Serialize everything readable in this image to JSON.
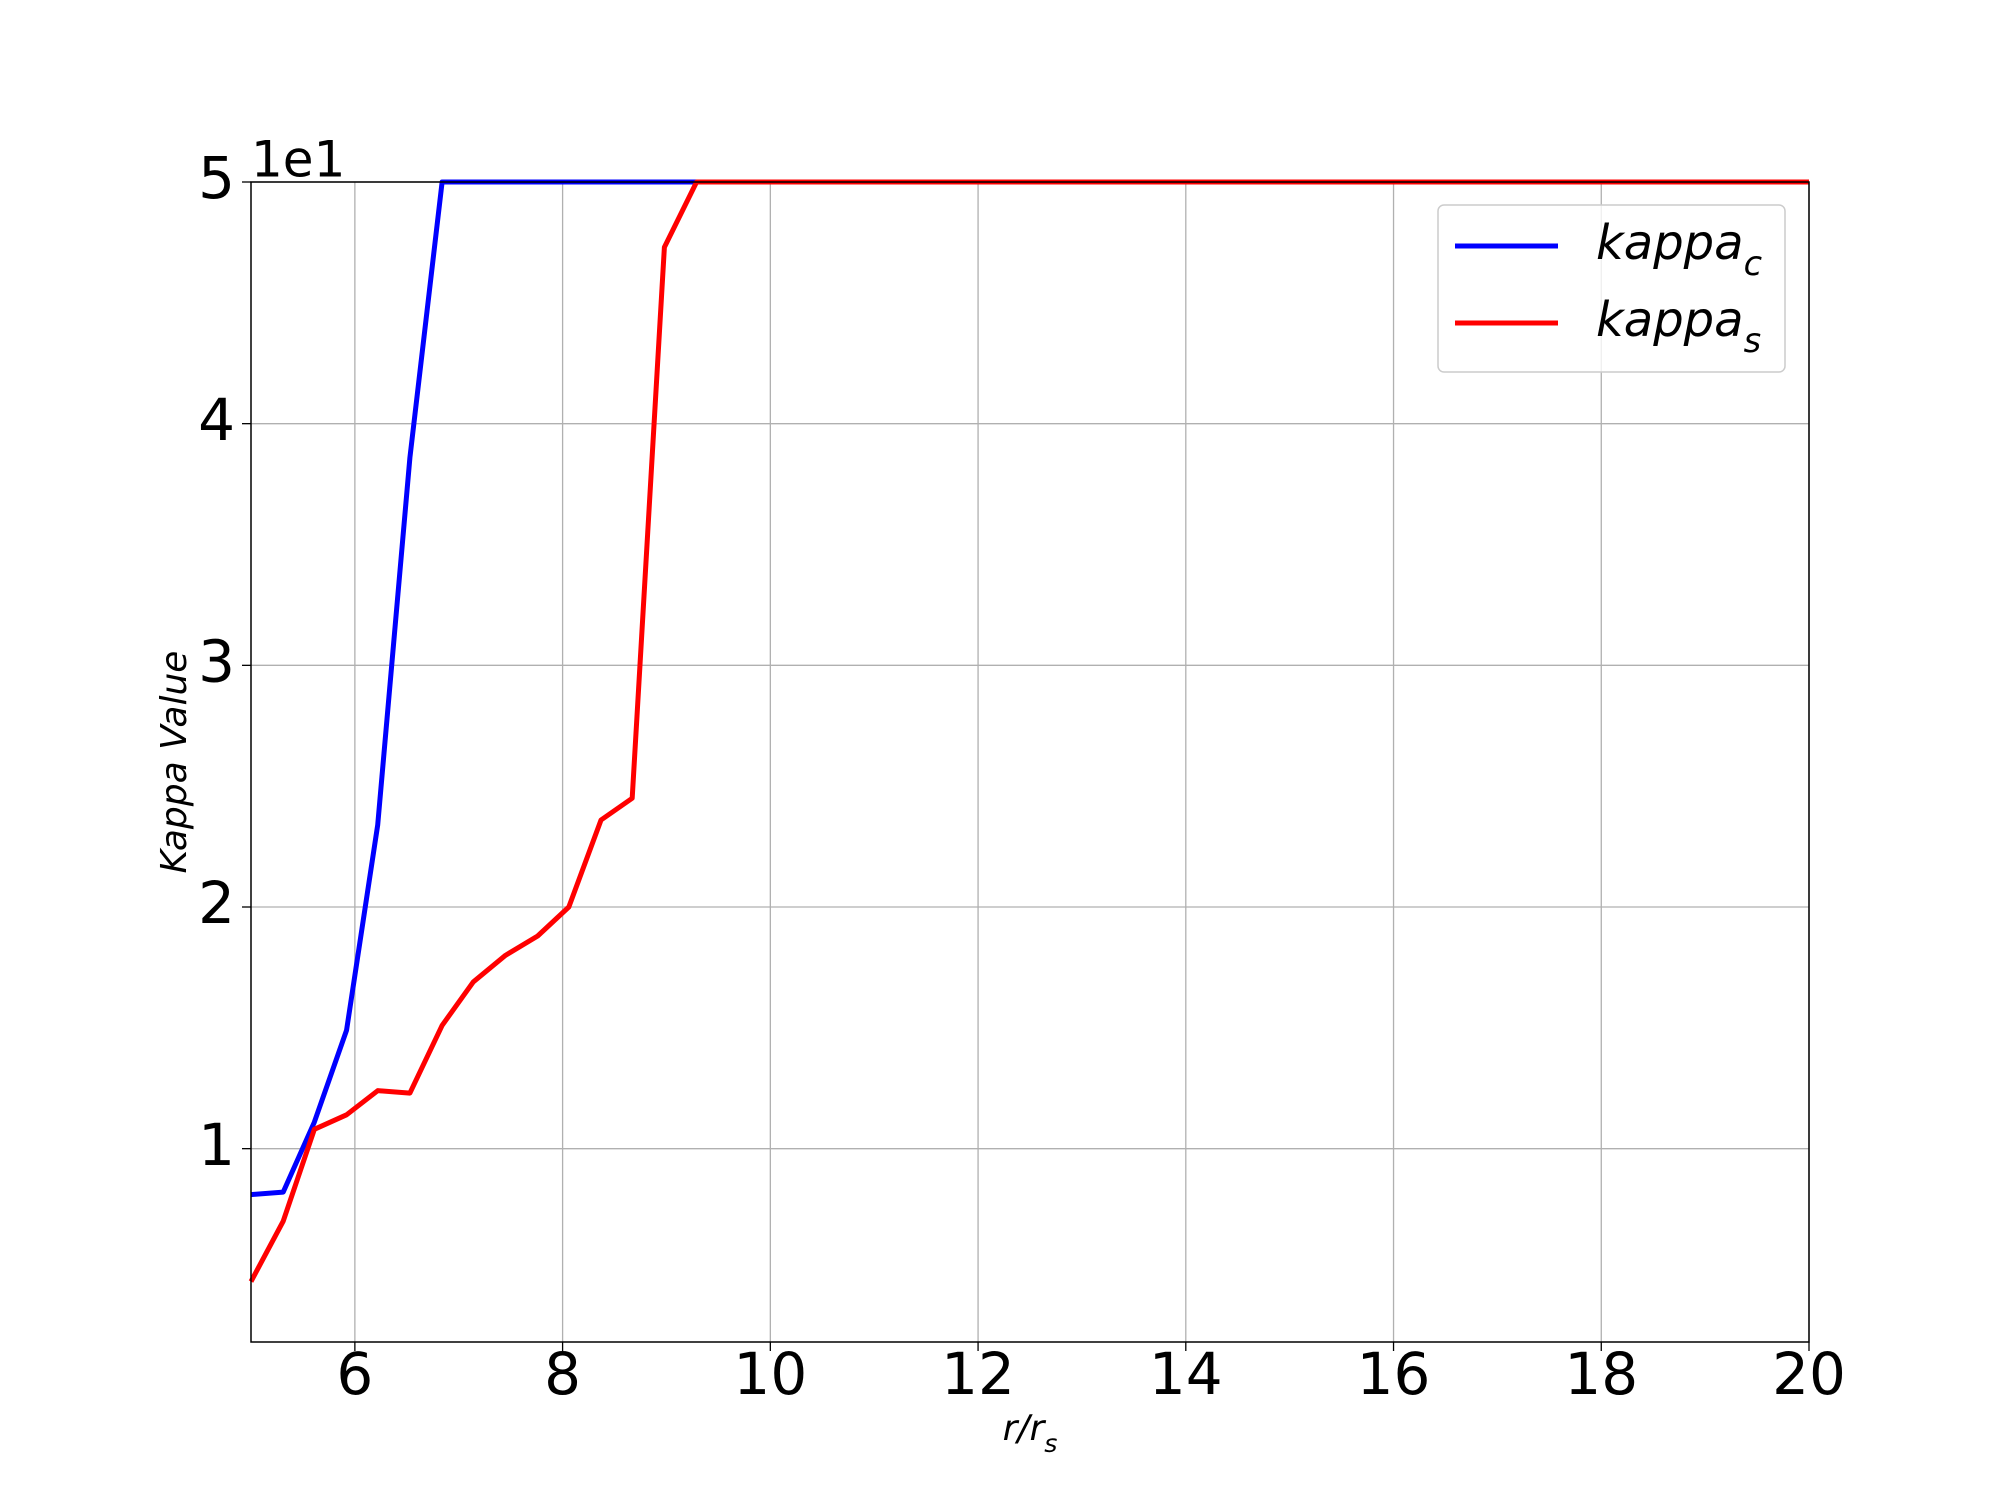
{
  "chart_data": {
    "type": "line",
    "y_offset_label": "1e1",
    "xlabel": "r/r_s",
    "ylabel": "Kappa Value",
    "x": [
      5,
      5.31,
      5.61,
      5.92,
      6.22,
      6.53,
      6.84,
      7.14,
      7.45,
      7.76,
      8.06,
      8.37,
      8.67,
      8.98,
      9.29,
      9.59,
      9.9,
      10.2,
      10.51,
      10.82,
      11.12,
      11.43,
      11.73,
      12.04,
      12.35,
      12.65,
      12.96,
      13.27,
      13.57,
      13.88,
      14.18,
      14.49,
      14.8,
      15.1,
      15.41,
      15.71,
      16.02,
      16.33,
      16.63,
      16.94,
      17.24,
      17.55,
      17.86,
      18.16,
      18.47,
      18.78,
      19.08,
      19.39,
      19.69,
      20
    ],
    "series": [
      {
        "name": "kappa_c",
        "color": "#0000ff",
        "values": [
          0.81,
          0.82,
          1.11,
          1.49,
          2.34,
          3.86,
          5,
          5,
          5,
          5,
          5,
          5,
          5,
          5,
          5,
          5,
          5,
          5,
          5,
          5,
          5,
          5,
          5,
          5,
          5,
          5,
          5,
          5,
          5,
          5,
          5,
          5,
          5,
          5,
          5,
          5,
          5,
          5,
          5,
          5,
          5,
          5,
          5,
          5,
          5,
          5,
          5,
          5,
          5,
          5
        ]
      },
      {
        "name": "kappa_s",
        "color": "#ff0000",
        "values": [
          0.45,
          0.7,
          1.08,
          1.14,
          1.24,
          1.23,
          1.51,
          1.69,
          1.8,
          1.88,
          2,
          2.36,
          2.45,
          4.73,
          5,
          5,
          5,
          5,
          5,
          5,
          5,
          5,
          5,
          5,
          5,
          5,
          5,
          5,
          5,
          5,
          5,
          5,
          5,
          5,
          5,
          5,
          5,
          5,
          5,
          5,
          5,
          5,
          5,
          5,
          5,
          5,
          5,
          5,
          5,
          5
        ]
      }
    ],
    "xlim": [
      5,
      20
    ],
    "xticks": [
      6,
      8,
      10,
      12,
      14,
      16,
      18,
      20
    ],
    "ylim": [
      0.2,
      5
    ],
    "yticks": [
      1,
      2,
      3,
      4,
      5
    ],
    "grid": true,
    "legend": "upper right"
  }
}
